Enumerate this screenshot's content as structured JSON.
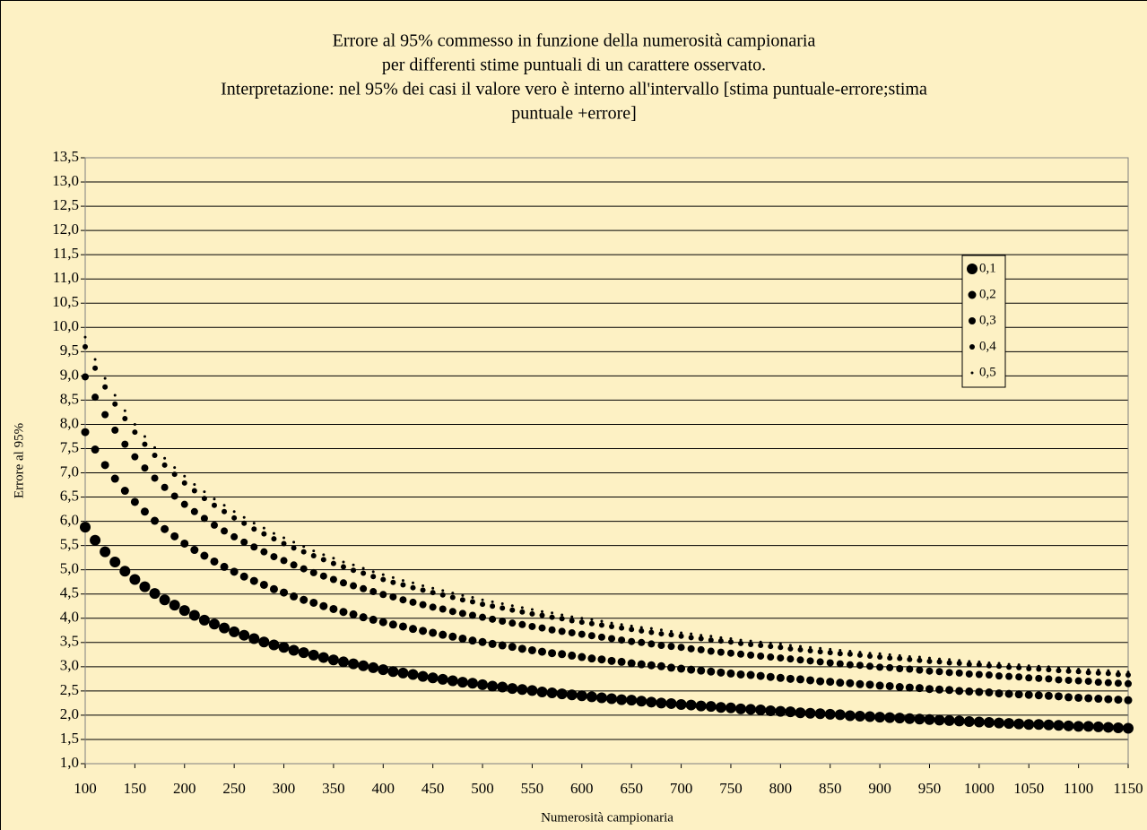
{
  "chart_data": {
    "type": "scatter",
    "title": [
      "Errore al 95% commesso in funzione della numerosità campionaria",
      "per differenti stime puntuali di un carattere osservato.",
      "Interpretazione: nel 95% dei casi il valore vero è interno all'intervallo [stima puntuale-errore;stima",
      "puntuale +errore]"
    ],
    "x_label": "Numerosità campionaria",
    "y_label": "Errore al 95%",
    "xlim": [
      100,
      1150
    ],
    "ylim": [
      1,
      13.5
    ],
    "xticks": [
      100,
      150,
      200,
      250,
      300,
      350,
      400,
      450,
      500,
      550,
      600,
      650,
      700,
      750,
      800,
      850,
      900,
      950,
      1000,
      1050,
      1100,
      1150
    ],
    "yticks": [
      {
        "value": 1,
        "label": "1,0"
      },
      {
        "value": 1.5,
        "label": "1,5"
      },
      {
        "value": 2,
        "label": "2,0"
      },
      {
        "value": 2.5,
        "label": "2,5"
      },
      {
        "value": 3,
        "label": "3,0"
      },
      {
        "value": 3.5,
        "label": "3,5"
      },
      {
        "value": 4,
        "label": "4,0"
      },
      {
        "value": 4.5,
        "label": "4,5"
      },
      {
        "value": 5,
        "label": "5,0"
      },
      {
        "value": 5.5,
        "label": "5,5"
      },
      {
        "value": 6,
        "label": "6,0"
      },
      {
        "value": 6.5,
        "label": "6,5"
      },
      {
        "value": 7,
        "label": "7,0"
      },
      {
        "value": 7.5,
        "label": "7,5"
      },
      {
        "value": 8,
        "label": "8,0"
      },
      {
        "value": 8.5,
        "label": "8,5"
      },
      {
        "value": 9,
        "label": "9,0"
      },
      {
        "value": 9.5,
        "label": "9,5"
      },
      {
        "value": 10,
        "label": "10,0"
      },
      {
        "value": 10.5,
        "label": "10,5"
      },
      {
        "value": 11,
        "label": "11,0"
      },
      {
        "value": 11.5,
        "label": "11,5"
      },
      {
        "value": 12,
        "label": "12,0"
      },
      {
        "value": 12.5,
        "label": "12,5"
      },
      {
        "value": 13,
        "label": "13,0"
      },
      {
        "value": 13.5,
        "label": "13,5"
      }
    ],
    "grid": true,
    "legend": "right",
    "background": "#fdf1c4",
    "x": [
      100,
      110,
      120,
      130,
      140,
      150,
      160,
      170,
      180,
      190,
      200,
      210,
      220,
      230,
      240,
      250,
      260,
      270,
      280,
      290,
      300,
      310,
      320,
      330,
      340,
      350,
      360,
      370,
      380,
      390,
      400,
      410,
      420,
      430,
      440,
      450,
      460,
      470,
      480,
      490,
      500,
      510,
      520,
      530,
      540,
      550,
      560,
      570,
      580,
      590,
      600,
      610,
      620,
      630,
      640,
      650,
      660,
      670,
      680,
      690,
      700,
      710,
      720,
      730,
      740,
      750,
      760,
      770,
      780,
      790,
      800,
      810,
      820,
      830,
      840,
      850,
      860,
      870,
      880,
      890,
      900,
      910,
      920,
      930,
      940,
      950,
      960,
      970,
      980,
      990,
      1000,
      1010,
      1020,
      1030,
      1040,
      1050,
      1060,
      1070,
      1080,
      1090,
      1100,
      1110,
      1120,
      1130,
      1140,
      1150
    ],
    "series": [
      {
        "name": "0,1",
        "color": "#000000",
        "marker_size": 12,
        "values": [
          5.88,
          5.61,
          5.37,
          5.16,
          4.97,
          4.8,
          4.65,
          4.51,
          4.38,
          4.27,
          4.16,
          4.06,
          3.96,
          3.88,
          3.8,
          3.72,
          3.65,
          3.58,
          3.51,
          3.45,
          3.4,
          3.34,
          3.29,
          3.24,
          3.19,
          3.14,
          3.1,
          3.06,
          3.02,
          2.98,
          2.94,
          2.9,
          2.87,
          2.84,
          2.8,
          2.77,
          2.74,
          2.71,
          2.68,
          2.66,
          2.63,
          2.6,
          2.58,
          2.55,
          2.53,
          2.51,
          2.48,
          2.46,
          2.44,
          2.42,
          2.4,
          2.38,
          2.36,
          2.34,
          2.32,
          2.31,
          2.29,
          2.27,
          2.25,
          2.24,
          2.22,
          2.21,
          2.19,
          2.18,
          2.16,
          2.15,
          2.13,
          2.12,
          2.11,
          2.09,
          2.08,
          2.07,
          2.05,
          2.04,
          2.03,
          2.02,
          2.01,
          1.99,
          1.98,
          1.97,
          1.96,
          1.95,
          1.94,
          1.93,
          1.92,
          1.91,
          1.9,
          1.89,
          1.88,
          1.87,
          1.86,
          1.85,
          1.84,
          1.83,
          1.82,
          1.81,
          1.81,
          1.8,
          1.79,
          1.78,
          1.77,
          1.77,
          1.76,
          1.75,
          1.74,
          1.73
        ]
      },
      {
        "name": "0,2",
        "color": "#000000",
        "marker_size": 9,
        "values": [
          7.84,
          7.48,
          7.16,
          6.88,
          6.63,
          6.4,
          6.2,
          6.01,
          5.84,
          5.69,
          5.54,
          5.41,
          5.29,
          5.17,
          5.06,
          4.96,
          4.86,
          4.77,
          4.69,
          4.6,
          4.53,
          4.45,
          4.38,
          4.32,
          4.25,
          4.19,
          4.13,
          4.08,
          4.02,
          3.97,
          3.92,
          3.87,
          3.83,
          3.78,
          3.74,
          3.7,
          3.66,
          3.62,
          3.58,
          3.54,
          3.51,
          3.47,
          3.44,
          3.41,
          3.37,
          3.34,
          3.31,
          3.28,
          3.26,
          3.23,
          3.2,
          3.17,
          3.15,
          3.12,
          3.1,
          3.07,
          3.05,
          3.03,
          3.01,
          2.98,
          2.96,
          2.94,
          2.92,
          2.9,
          2.88,
          2.86,
          2.84,
          2.83,
          2.81,
          2.79,
          2.77,
          2.75,
          2.74,
          2.72,
          2.7,
          2.69,
          2.67,
          2.66,
          2.64,
          2.63,
          2.61,
          2.6,
          2.58,
          2.57,
          2.56,
          2.54,
          2.53,
          2.52,
          2.5,
          2.49,
          2.48,
          2.47,
          2.45,
          2.44,
          2.43,
          2.42,
          2.41,
          2.4,
          2.39,
          2.37,
          2.36,
          2.35,
          2.34,
          2.33,
          2.32,
          2.31
        ]
      },
      {
        "name": "0,3",
        "color": "#000000",
        "marker_size": 8,
        "values": [
          8.98,
          8.56,
          8.2,
          7.88,
          7.59,
          7.33,
          7.1,
          6.89,
          6.7,
          6.52,
          6.35,
          6.2,
          6.06,
          5.92,
          5.8,
          5.68,
          5.57,
          5.47,
          5.37,
          5.27,
          5.19,
          5.1,
          5.02,
          4.94,
          4.87,
          4.8,
          4.73,
          4.67,
          4.61,
          4.55,
          4.49,
          4.44,
          4.38,
          4.33,
          4.28,
          4.23,
          4.19,
          4.14,
          4.1,
          4.06,
          4.02,
          3.98,
          3.94,
          3.9,
          3.87,
          3.83,
          3.8,
          3.76,
          3.73,
          3.7,
          3.67,
          3.64,
          3.61,
          3.58,
          3.55,
          3.52,
          3.5,
          3.47,
          3.44,
          3.42,
          3.4,
          3.37,
          3.35,
          3.32,
          3.3,
          3.28,
          3.26,
          3.24,
          3.22,
          3.2,
          3.18,
          3.16,
          3.14,
          3.12,
          3.1,
          3.08,
          3.06,
          3.04,
          3.03,
          3.01,
          2.99,
          2.98,
          2.96,
          2.95,
          2.93,
          2.91,
          2.9,
          2.88,
          2.87,
          2.85,
          2.84,
          2.83,
          2.81,
          2.8,
          2.79,
          2.77,
          2.76,
          2.75,
          2.73,
          2.72,
          2.71,
          2.7,
          2.68,
          2.67,
          2.66,
          2.65
        ]
      },
      {
        "name": "0,4",
        "color": "#000000",
        "marker_size": 6,
        "values": [
          9.6,
          9.16,
          8.77,
          8.42,
          8.12,
          7.84,
          7.59,
          7.36,
          7.16,
          6.97,
          6.79,
          6.63,
          6.47,
          6.33,
          6.2,
          6.07,
          5.96,
          5.84,
          5.74,
          5.64,
          5.54,
          5.45,
          5.37,
          5.29,
          5.21,
          5.13,
          5.06,
          4.99,
          4.93,
          4.86,
          4.8,
          4.74,
          4.69,
          4.63,
          4.58,
          4.53,
          4.48,
          4.43,
          4.38,
          4.34,
          4.29,
          4.25,
          4.21,
          4.17,
          4.13,
          4.09,
          4.06,
          4.02,
          3.99,
          3.95,
          3.92,
          3.89,
          3.86,
          3.83,
          3.8,
          3.77,
          3.74,
          3.71,
          3.68,
          3.66,
          3.63,
          3.6,
          3.58,
          3.55,
          3.53,
          3.51,
          3.48,
          3.46,
          3.44,
          3.42,
          3.4,
          3.37,
          3.35,
          3.33,
          3.31,
          3.29,
          3.27,
          3.26,
          3.24,
          3.22,
          3.2,
          3.18,
          3.17,
          3.15,
          3.13,
          3.11,
          3.1,
          3.08,
          3.07,
          3.05,
          3.04,
          3.02,
          3.01,
          2.99,
          2.98,
          2.96,
          2.95,
          2.94,
          2.92,
          2.91,
          2.9,
          2.88,
          2.87,
          2.86,
          2.84,
          2.83
        ]
      },
      {
        "name": "0,5",
        "color": "#000000",
        "marker_size": 3,
        "values": [
          9.8,
          9.34,
          8.95,
          8.6,
          8.28,
          8.0,
          7.75,
          7.52,
          7.3,
          7.11,
          6.93,
          6.76,
          6.61,
          6.46,
          6.33,
          6.2,
          6.08,
          5.96,
          5.86,
          5.75,
          5.66,
          5.57,
          5.48,
          5.39,
          5.31,
          5.24,
          5.16,
          5.1,
          5.03,
          4.96,
          4.9,
          4.84,
          4.78,
          4.73,
          4.67,
          4.62,
          4.57,
          4.52,
          4.47,
          4.43,
          4.38,
          4.34,
          4.3,
          4.26,
          4.22,
          4.18,
          4.14,
          4.11,
          4.07,
          4.03,
          4.0,
          3.97,
          3.94,
          3.9,
          3.87,
          3.84,
          3.81,
          3.79,
          3.76,
          3.73,
          3.7,
          3.68,
          3.65,
          3.63,
          3.6,
          3.58,
          3.55,
          3.53,
          3.51,
          3.49,
          3.47,
          3.44,
          3.42,
          3.4,
          3.38,
          3.36,
          3.34,
          3.32,
          3.3,
          3.28,
          3.27,
          3.25,
          3.23,
          3.21,
          3.2,
          3.18,
          3.16,
          3.15,
          3.13,
          3.11,
          3.1,
          3.08,
          3.07,
          3.05,
          3.04,
          3.02,
          3.01,
          3.0,
          2.98,
          2.97,
          2.95,
          2.94,
          2.93,
          2.92,
          2.9,
          2.89
        ]
      }
    ]
  }
}
